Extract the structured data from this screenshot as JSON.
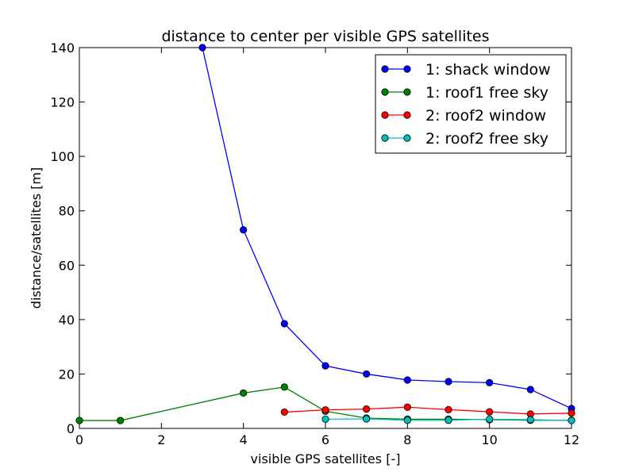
{
  "chart_data": {
    "type": "line",
    "title": "distance to center per visible GPS satellites",
    "xlabel": "visible GPS satellites [-]",
    "ylabel": "distance/satellites [m]",
    "xlim": [
      0,
      12
    ],
    "ylim": [
      0,
      140
    ],
    "xticks": [
      0,
      2,
      4,
      6,
      8,
      10,
      12
    ],
    "yticks": [
      0,
      20,
      40,
      60,
      80,
      100,
      120,
      140
    ],
    "grid": false,
    "legend_position": "top-right",
    "series": [
      {
        "name": "1: shack window",
        "color": "#0000ff",
        "x": [
          3,
          4,
          5,
          6,
          7,
          8,
          9,
          10,
          11,
          12
        ],
        "y": [
          140,
          73,
          38.5,
          23,
          20,
          17.8,
          17.2,
          16.8,
          14.3,
          7.3
        ]
      },
      {
        "name": "1: roof1 free sky",
        "color": "#008000",
        "x": [
          0,
          1,
          4,
          5,
          6,
          7,
          8,
          9,
          10,
          11,
          12
        ],
        "y": [
          2.9,
          2.9,
          13,
          15.2,
          6.3,
          3.8,
          3.4,
          3.4,
          3.2,
          3.0,
          3.0
        ]
      },
      {
        "name": "2: roof2 window",
        "color": "#ff0000",
        "x": [
          5,
          6,
          7,
          8,
          9,
          10,
          11,
          12
        ],
        "y": [
          6.0,
          6.8,
          7.1,
          7.8,
          6.9,
          6.1,
          5.3,
          5.6
        ]
      },
      {
        "name": "2: roof2 free sky",
        "color": "#00bfbf",
        "x": [
          6,
          7,
          8,
          9,
          10,
          11,
          12
        ],
        "y": [
          3.4,
          3.5,
          3.0,
          3.0,
          3.4,
          3.2,
          2.9
        ]
      }
    ]
  }
}
